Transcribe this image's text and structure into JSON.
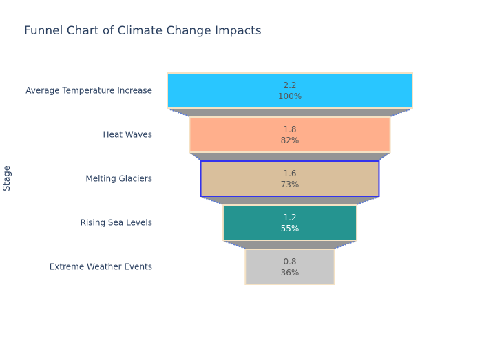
{
  "chart_data": {
    "type": "funnel",
    "title": "Funnel Chart of Climate Change Impacts",
    "ylabel": "Stage",
    "stages": [
      {
        "label": "Average Temperature Increase",
        "value": 2.2,
        "percent": "100%",
        "color": "#29c6ff",
        "border": "#f5e2c4"
      },
      {
        "label": "Heat Waves",
        "value": 1.8,
        "percent": "82%",
        "color": "#ffaf8c",
        "border": "#f5e2c4"
      },
      {
        "label": "Melting Glaciers",
        "value": 1.6,
        "percent": "73%",
        "color": "#d9bf9c",
        "border": "#3333ee"
      },
      {
        "label": "Rising Sea Levels",
        "value": 1.2,
        "percent": "55%",
        "color": "#259490",
        "border": "#f5e2c4"
      },
      {
        "label": "Extreme Weather Events",
        "value": 0.8,
        "percent": "36%",
        "color": "#c8c8c8",
        "border": "#f5e2c4"
      }
    ],
    "connector": {
      "fill": "#959595",
      "line": "#5a7bd6"
    }
  }
}
